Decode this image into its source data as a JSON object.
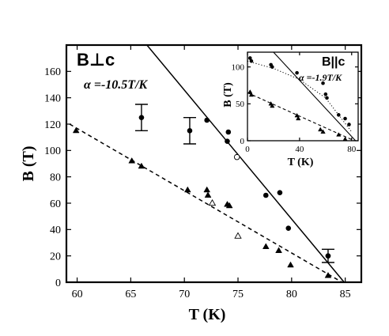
{
  "chart_data": [
    {
      "type": "scatter",
      "orientation_label": "B⊥c",
      "annotation": "α =-10.5T/K",
      "xlabel": "T (K)",
      "ylabel": "B (T)",
      "xlim": [
        59,
        86.5
      ],
      "ylim": [
        0,
        180
      ],
      "xticks": [
        60,
        65,
        70,
        75,
        80,
        85
      ],
      "yticks": [
        0,
        20,
        40,
        60,
        80,
        100,
        120,
        140,
        160
      ],
      "series": [
        {
          "marker": "filled-circle",
          "points": [
            [
              72.1,
              123
            ],
            [
              74.0,
              107
            ],
            [
              74.1,
              114
            ],
            [
              77.6,
              66
            ],
            [
              78.9,
              68
            ],
            [
              79.7,
              41
            ],
            [
              83.4,
              20
            ]
          ]
        },
        {
          "marker": "open-circle",
          "points": [
            [
              74.9,
              95
            ]
          ]
        },
        {
          "marker": "filled-triangle",
          "points": [
            [
              59.9,
              115
            ],
            [
              65.1,
              92
            ],
            [
              66.0,
              88
            ],
            [
              70.3,
              70
            ],
            [
              72.1,
              70
            ],
            [
              72.2,
              66
            ],
            [
              74.0,
              59
            ],
            [
              74.2,
              58
            ],
            [
              77.6,
              27
            ],
            [
              78.8,
              24
            ],
            [
              79.9,
              13
            ],
            [
              83.4,
              5
            ]
          ]
        },
        {
          "marker": "open-triangle",
          "points": [
            [
              72.6,
              60
            ],
            [
              75.0,
              35
            ]
          ]
        },
        {
          "marker": "filled-circle-errorbar",
          "points": [
            [
              66.0,
              125,
              10
            ],
            [
              70.5,
              115,
              10
            ],
            [
              83.4,
              20,
              5
            ]
          ]
        }
      ],
      "lines": [
        {
          "style": "solid",
          "points": [
            [
              66.0,
              185
            ],
            [
              84.9,
              0
            ]
          ]
        },
        {
          "style": "dashed",
          "points": [
            [
              59.3,
              120
            ],
            [
              84.7,
              0
            ]
          ]
        }
      ]
    },
    {
      "type": "scatter",
      "orientation_label": "B||c",
      "annotation": "α =-1.9T/K",
      "xlabel": "T (K)",
      "ylabel": "B (T)",
      "xlim": [
        0,
        85
      ],
      "ylim": [
        0,
        120
      ],
      "xticks": [
        0,
        40,
        80
      ],
      "yticks": [
        0,
        50,
        100
      ],
      "series": [
        {
          "marker": "filled-circle",
          "points": [
            [
              2,
              112
            ],
            [
              3,
              108
            ],
            [
              18,
              103
            ],
            [
              19,
              100
            ],
            [
              38,
              92
            ],
            [
              58,
              78
            ],
            [
              60,
              63
            ],
            [
              61,
              58
            ],
            [
              70,
              35
            ],
            [
              75,
              30
            ],
            [
              78,
              22
            ]
          ]
        },
        {
          "marker": "filled-triangle",
          "points": [
            [
              2,
              66
            ],
            [
              3,
              62
            ],
            [
              18,
              50
            ],
            [
              19,
              47
            ],
            [
              38,
              34
            ],
            [
              39,
              30
            ],
            [
              56,
              15
            ],
            [
              58,
              12
            ],
            [
              70,
              8
            ],
            [
              75,
              2
            ]
          ]
        }
      ],
      "lines": [
        {
          "style": "solid",
          "points": [
            [
              20,
              120
            ],
            [
              83,
              0
            ]
          ]
        },
        {
          "style": "dotted",
          "points": [
            [
              0,
              108
            ],
            [
              20,
              98
            ],
            [
              40,
              83
            ],
            [
              60,
              58
            ],
            [
              80,
              12
            ]
          ]
        },
        {
          "style": "dashed",
          "points": [
            [
              0,
              65
            ],
            [
              82,
              0
            ]
          ]
        }
      ]
    }
  ]
}
